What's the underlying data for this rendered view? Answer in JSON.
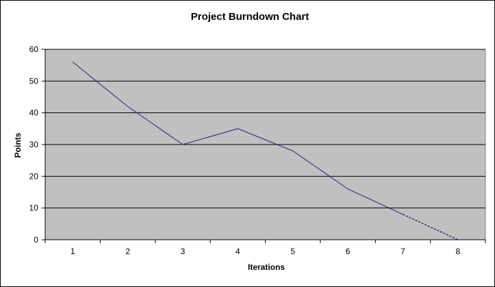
{
  "chart_data": {
    "type": "line",
    "title": "Project Burndown Chart",
    "xlabel": "Iterations",
    "ylabel": "Points",
    "categories": [
      "1",
      "2",
      "3",
      "4",
      "5",
      "6",
      "7",
      "8"
    ],
    "ylim": [
      0,
      60
    ],
    "yticks": [
      0,
      10,
      20,
      30,
      40,
      50,
      60
    ],
    "grid": true,
    "legend": "none",
    "series": [
      {
        "values": [
          56,
          42,
          30,
          35,
          28,
          16,
          8,
          0
        ],
        "color": "#1F1F7A",
        "projected_from_index": 6
      }
    ],
    "plot_background": "#C0C0C0"
  }
}
